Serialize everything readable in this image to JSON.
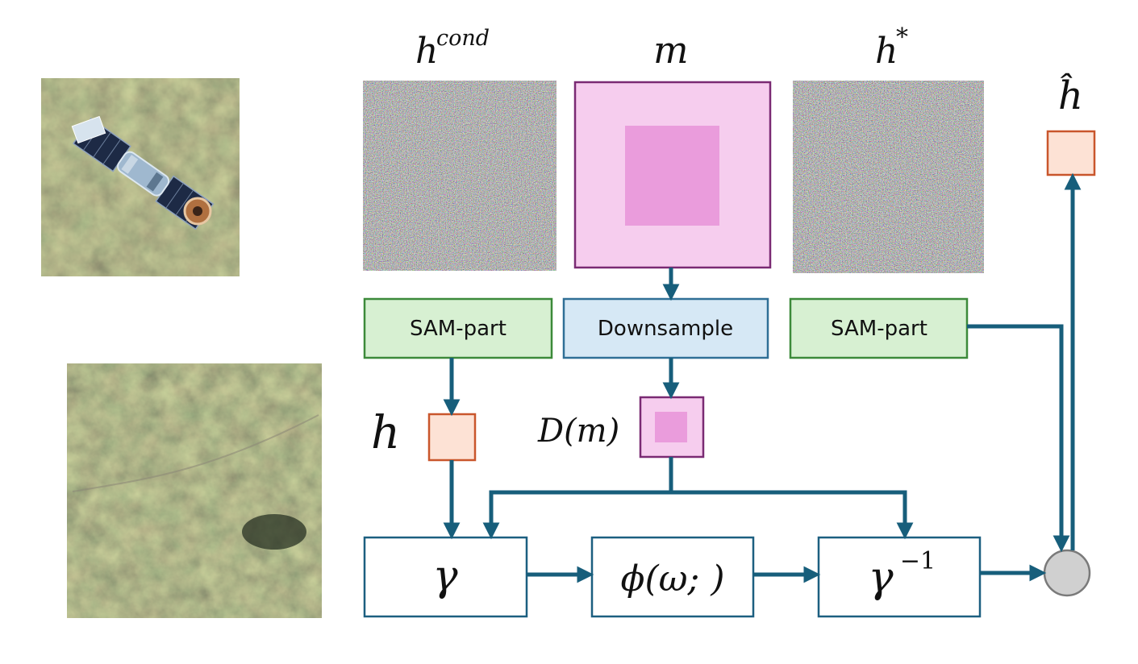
{
  "colors": {
    "arrow": "#175e7b",
    "sam_fill": "#d7f0d2",
    "sam_stroke": "#3c8a3a",
    "down_fill": "#d6e8f5",
    "down_stroke": "#2f6f96",
    "mask_outer": "#f6cdee",
    "mask_inner": "#ea9cdc",
    "mask_stroke": "#7a2a73",
    "feature_fill": "#fde2d5",
    "feature_stroke": "#c9562c",
    "op_stroke": "#1c5f80",
    "circle_fill": "#d0d0d0",
    "circle_stroke": "#7a7a7a"
  },
  "labels": {
    "h_cond_base": "h",
    "h_cond_sup": "cond",
    "m": "m",
    "h_star_base": "h",
    "h_star_sup": "*",
    "h_hat": "ĥ",
    "h": "h",
    "d_of_m": "D(m)"
  },
  "boxes": {
    "sam_left": "SAM-part",
    "downsample": "Downsample",
    "sam_right": "SAM-part"
  },
  "operators": {
    "gamma": "γ",
    "phi": "ϕ(ω; )",
    "gamma_inv_base": "γ",
    "gamma_inv_sup": "−1"
  }
}
